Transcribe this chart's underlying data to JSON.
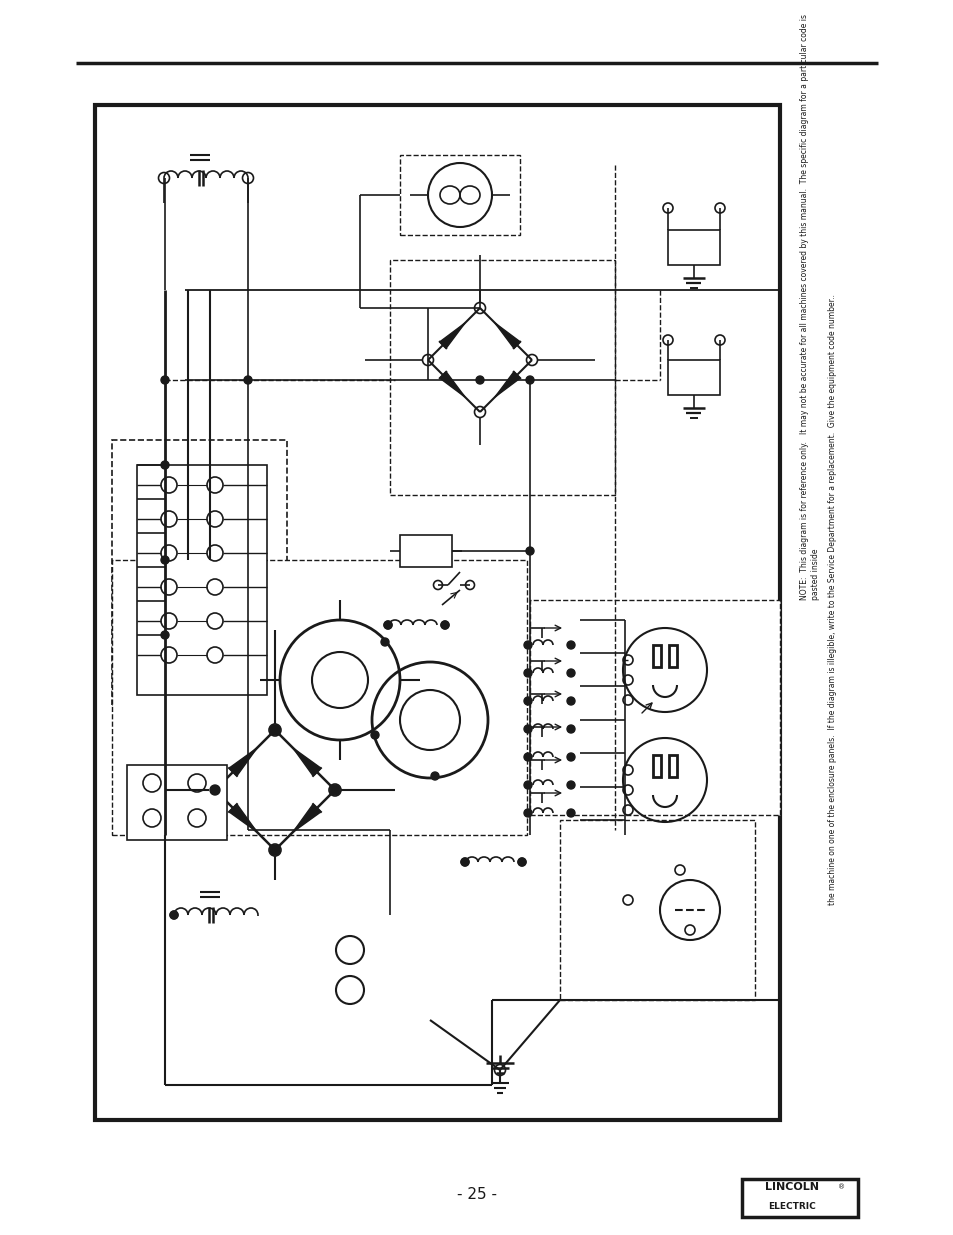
{
  "page_width": 9.54,
  "page_height": 12.35,
  "bg_color": "#ffffff",
  "line_color": "#1a1a1a",
  "page_number": "- 25 -",
  "note_line1": "NOTE:  This diagram is for reference only.   It may not be accurate for all machines covered by this manual.  The specific diagram for a particular code is pasted inside",
  "note_line2": "the machine on one of the enclosure panels.  If the diagram is illegible, write to the Service Department for a replacement.  Give the equipment code number.."
}
